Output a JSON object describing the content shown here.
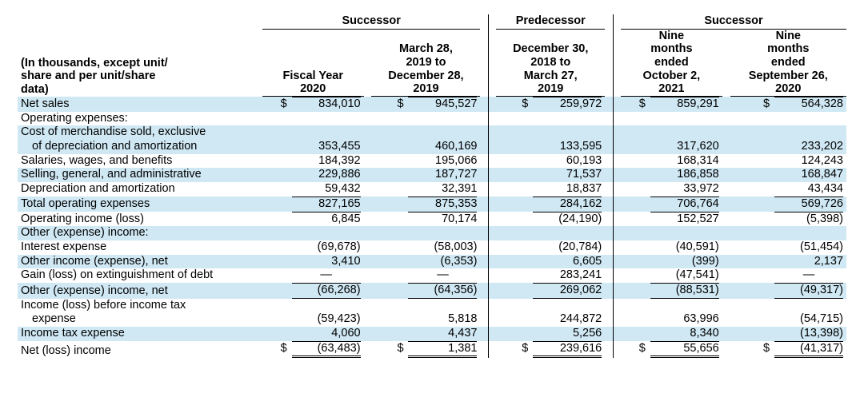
{
  "meta": {
    "unit_note_l1": "(In thousands, except unit/",
    "unit_note_l2": "share and per unit/share",
    "unit_note_l3": "data)"
  },
  "super": {
    "successor": "Successor",
    "predecessor": "Predecessor"
  },
  "cols": {
    "c1": {
      "l1": "",
      "l2": "",
      "l3": "",
      "l4": "Fiscal Year",
      "l5": "2020"
    },
    "c2": {
      "l1": "",
      "l2": "March 28,",
      "l3": "2019 to",
      "l4": "December 28,",
      "l5": "2019"
    },
    "c3": {
      "l1": "",
      "l2": "December 30,",
      "l3": "2018 to",
      "l4": "March 27,",
      "l5": "2019"
    },
    "c4": {
      "l1": "Nine",
      "l2": "months",
      "l3": "ended",
      "l4": "October 2,",
      "l5": "2021"
    },
    "c5": {
      "l1": "Nine",
      "l2": "months",
      "l3": "ended",
      "l4": "September 26,",
      "l5": "2020"
    }
  },
  "rows": [
    {
      "label": "Net sales",
      "shade": true,
      "vals": [
        "$ 834,010",
        "$     945,527",
        "$       259,972",
        "$859,291",
        "$       564,328"
      ],
      "bt": true
    },
    {
      "label": "Operating expenses:",
      "shade": false,
      "vals": [
        "",
        "",
        "",
        "",
        ""
      ]
    },
    {
      "label_l1": "Cost of merchandise sold, exclusive",
      "label_l2": "of depreciation and amortization",
      "indent2": true,
      "shade": true,
      "vals": [
        "353,455",
        "460,169",
        "133,595",
        "317,620",
        "233,202"
      ]
    },
    {
      "label": "Salaries, wages, and benefits",
      "shade": false,
      "vals": [
        "184,392",
        "195,066",
        "60,193",
        "168,314",
        "124,243"
      ]
    },
    {
      "label": "Selling, general, and administrative",
      "shade": true,
      "vals": [
        "229,886",
        "187,727",
        "71,537",
        "186,858",
        "168,847"
      ]
    },
    {
      "label": "Depreciation and amortization",
      "shade": false,
      "vals": [
        "59,432",
        "32,391",
        "18,837",
        "33,972",
        "43,434"
      ]
    },
    {
      "label": "Total operating expenses",
      "shade": true,
      "vals": [
        "827,165",
        "875,353",
        "284,162",
        "706,764",
        "569,726"
      ],
      "bt": true
    },
    {
      "label": "Operating income (loss)",
      "shade": false,
      "vals": [
        "6,845",
        "70,174",
        "(24,190)",
        "152,527",
        "(5,398)"
      ],
      "bt": true
    },
    {
      "label": "Other (expense) income:",
      "shade": true,
      "vals": [
        "",
        "",
        "",
        "",
        ""
      ]
    },
    {
      "label": "Interest expense",
      "shade": false,
      "vals": [
        "(69,678)",
        "(58,003)",
        "(20,784)",
        "(40,591)",
        "(51,454)"
      ]
    },
    {
      "label": "Other income (expense), net",
      "shade": true,
      "vals": [
        "3,410",
        "(6,353)",
        "6,605",
        "(399)",
        "2,137"
      ]
    },
    {
      "label": "Gain (loss) on extinguishment of debt",
      "shade": false,
      "vals": [
        "—",
        "—",
        "283,241",
        "(47,541)",
        "—"
      ]
    },
    {
      "label": "Other (expense) income, net",
      "shade": true,
      "vals": [
        "(66,268)",
        "(64,356)",
        "269,062",
        "(88,531)",
        "(49,317)"
      ],
      "bt": true,
      "bb": true
    },
    {
      "label_l1": "Income (loss) before income tax",
      "label_l2": "expense",
      "indent2": true,
      "shade": false,
      "vals": [
        "(59,423)",
        "5,818",
        "244,872",
        "63,996",
        "(54,715)"
      ]
    },
    {
      "label": "Income tax expense",
      "shade": true,
      "vals": [
        "4,060",
        "4,437",
        "5,256",
        "8,340",
        "(13,398)"
      ]
    },
    {
      "label": "Net (loss) income",
      "shade": false,
      "vals": [
        "$  (63,483)",
        "$        1,381",
        "$       239,616",
        "$  55,656",
        "$        (41,317)"
      ],
      "bt": true,
      "dbl": true
    }
  ],
  "colors": {
    "shade": "#cfe8f4",
    "rule": "#000000",
    "text": "#000000",
    "bg": "#ffffff"
  },
  "font": {
    "family": "Arial",
    "size_pt": 11,
    "header_weight": 700
  }
}
